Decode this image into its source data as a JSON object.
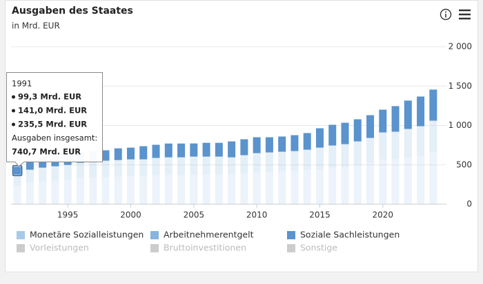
{
  "chart_data": {
    "type": "stacked-bar",
    "title": "Ausgaben des Staates",
    "subtitle": "in Mrd. EUR",
    "x": [
      1991,
      1992,
      1993,
      1994,
      1995,
      1996,
      1997,
      1998,
      1999,
      2000,
      2001,
      2002,
      2003,
      2004,
      2005,
      2006,
      2007,
      2008,
      2009,
      2010,
      2011,
      2012,
      2013,
      2014,
      2015,
      2016,
      2017,
      2018,
      2019,
      2020,
      2021,
      2022,
      2023,
      2024
    ],
    "xlim": [
      1990.5,
      2024.5
    ],
    "xticks": [
      1995,
      2000,
      2005,
      2010,
      2015,
      2020
    ],
    "ylim": [
      0,
      2000
    ],
    "yticks": [
      0,
      500,
      {
        "value": 1000,
        "label": "1 000"
      },
      {
        "value": 1500,
        "label": "1 500"
      },
      {
        "value": 2000,
        "label": "2 000"
      }
    ],
    "grid": true,
    "series": [
      {
        "name": "Monetäre Sozialleistungen",
        "color": "#a9c9e8",
        "faded": true,
        "values": [
          235.5,
          274,
          291,
          301,
          312,
          329,
          334,
          346,
          351,
          356,
          356,
          368,
          372,
          372,
          378,
          378,
          378,
          372,
          389,
          406,
          411,
          417,
          422,
          433,
          449,
          466,
          477,
          499,
          526,
          570,
          576,
          598,
          619,
          663
        ]
      },
      {
        "name": "Arbeitnehmerentgelt",
        "color": "#86b4dc",
        "faded": true,
        "values": [
          141.0,
          164.5,
          174,
          181,
          188,
          197,
          201,
          207,
          210,
          214,
          214,
          220,
          224,
          224,
          227,
          227,
          227,
          224,
          234,
          243,
          247,
          250,
          253,
          260,
          270,
          280,
          286,
          299,
          316,
          342,
          345,
          358,
          372,
          398
        ]
      },
      {
        "name": "Soziale Sachleistungen",
        "color": "#5a93cd",
        "values": [
          99.3,
          122.8,
          131.6,
          140,
          149,
          140,
          140,
          132,
          149,
          149,
          167,
          167,
          175,
          175,
          167,
          175,
          175,
          202,
          202,
          202,
          193,
          193,
          202,
          211,
          246,
          263,
          272,
          281,
          289,
          289,
          325,
          360,
          377,
          395
        ]
      },
      {
        "name": "Vorleistungen",
        "color": "#cccccc",
        "visible": false
      },
      {
        "name": "Bruttoinvestitionen",
        "color": "#cccccc",
        "visible": false
      },
      {
        "name": "Sonstige",
        "color": "#cccccc",
        "visible": false
      }
    ],
    "tooltip": {
      "title": "1991",
      "lines": [
        "99,3 Mrd. EUR",
        "141,0 Mrd. EUR",
        "235,5 Mrd. EUR"
      ],
      "total_label": "Ausgaben insgesamt:",
      "total": "740,7 Mrd. EUR"
    }
  }
}
